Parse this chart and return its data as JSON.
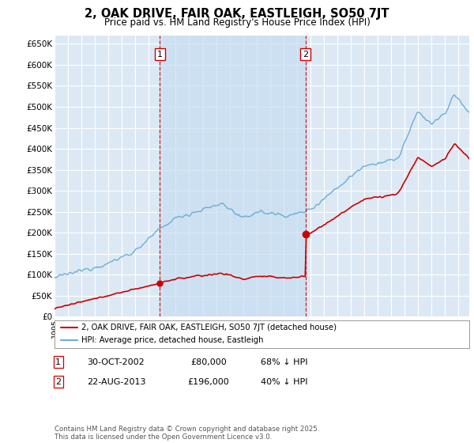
{
  "title": "2, OAK DRIVE, FAIR OAK, EASTLEIGH, SO50 7JT",
  "subtitle": "Price paid vs. HM Land Registry's House Price Index (HPI)",
  "ylim": [
    0,
    670000
  ],
  "yticks": [
    0,
    50000,
    100000,
    150000,
    200000,
    250000,
    300000,
    350000,
    400000,
    450000,
    500000,
    550000,
    600000,
    650000
  ],
  "ytick_labels": [
    "£0",
    "£50K",
    "£100K",
    "£150K",
    "£200K",
    "£250K",
    "£300K",
    "£350K",
    "£400K",
    "£450K",
    "£500K",
    "£550K",
    "£600K",
    "£650K"
  ],
  "bg_color": "#dce9f5",
  "grid_color": "#ffffff",
  "fill_color": "#c8ddf0",
  "sale1_date": 2002.83,
  "sale1_price": 80000,
  "sale2_date": 2013.64,
  "sale2_price": 196000,
  "sale1_label": "1",
  "sale2_label": "2",
  "legend_line1": "2, OAK DRIVE, FAIR OAK, EASTLEIGH, SO50 7JT (detached house)",
  "legend_line2": "HPI: Average price, detached house, Eastleigh",
  "table_row1": [
    "1",
    "30-OCT-2002",
    "£80,000",
    "68% ↓ HPI"
  ],
  "table_row2": [
    "2",
    "22-AUG-2013",
    "£196,000",
    "40% ↓ HPI"
  ],
  "footer": "Contains HM Land Registry data © Crown copyright and database right 2025.\nThis data is licensed under the Open Government Licence v3.0.",
  "hpi_color": "#6baed6",
  "price_color": "#cc0000",
  "vline_color": "#cc0000",
  "xlim_start": 1995,
  "xlim_end": 2025.8
}
